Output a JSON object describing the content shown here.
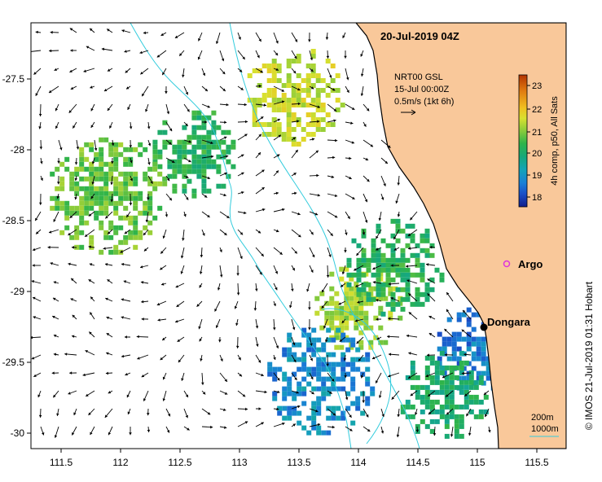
{
  "title": "20-Jul-2019 04Z",
  "current_info": {
    "source": "NRT00 GSL",
    "time": "15-Jul 00:00Z",
    "scale": "0.5m/s (1kt 6h)"
  },
  "colorbar": {
    "label": "4h comp, p50, All Sats",
    "ticks": [
      "23",
      "22",
      "21",
      "20",
      "19",
      "18"
    ],
    "colors": [
      "#b33400",
      "#e07a10",
      "#f0c020",
      "#d8e030",
      "#8ccc3a",
      "#2fb44a",
      "#16a87a",
      "#14a3b8",
      "#1a7fd6",
      "#1a50c8",
      "#121e8c"
    ]
  },
  "axes": {
    "x_ticks": [
      "111.5",
      "112",
      "112.5",
      "113",
      "113.5",
      "114",
      "114.5",
      "115",
      "115.5"
    ],
    "y_ticks": [
      "-27.5",
      "-28",
      "-28.5",
      "-29",
      "-29.5",
      "-30"
    ]
  },
  "places": {
    "argo": "Argo",
    "dongara": "Dongara"
  },
  "legend_depth": {
    "contour_200": "200m",
    "contour_1000": "1000m"
  },
  "credit": "© IMOS 21-Jul-2019 01:31 Hobart",
  "colors": {
    "land": "#f9c89a",
    "contour": "#33ccdd",
    "argo": "#dd33dd"
  },
  "chart_data": {
    "type": "heatmap",
    "title": "20-Jul-2019 04Z",
    "xlim": [
      111.3,
      115.6
    ],
    "ylim": [
      -30.1,
      -27.1
    ],
    "colorbar_range": [
      17.7,
      23.4
    ],
    "dongara": {
      "lon": 114.93,
      "lat": -29.25
    },
    "argo": {
      "lon": 115.13,
      "lat": -28.83
    },
    "sst_patches": [
      {
        "lon": 113.9,
        "lat": -29.1,
        "sst": 21.0
      },
      {
        "lon": 114.2,
        "lat": -28.8,
        "sst": 20.0
      },
      {
        "lon": 113.6,
        "lat": -29.6,
        "sst": 18.8
      },
      {
        "lon": 114.9,
        "lat": -29.4,
        "sst": 18.6
      },
      {
        "lon": 113.4,
        "lat": -27.6,
        "sst": 21.3
      },
      {
        "lon": 112.6,
        "lat": -28.0,
        "sst": 20.0
      },
      {
        "lon": 111.9,
        "lat": -28.3,
        "sst": 20.6
      },
      {
        "lon": 114.6,
        "lat": -29.7,
        "sst": 19.8
      }
    ]
  }
}
